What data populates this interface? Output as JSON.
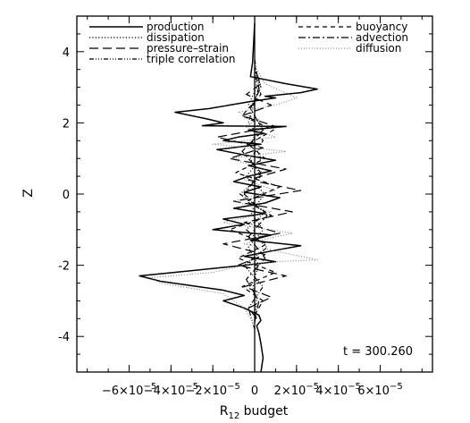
{
  "chart_data": {
    "type": "line",
    "orientation": "vertical-profile",
    "xlabel": "R",
    "xlabel_sub": "12",
    "xlabel_suffix": " budget",
    "ylabel": "Z",
    "xlim": [
      -8.5e-05,
      8.5e-05
    ],
    "ylim": [
      -5,
      5
    ],
    "x_ticks": [
      {
        "value": -6e-05,
        "mant": "−6×10",
        "exp": "−5"
      },
      {
        "value": -4e-05,
        "mant": "−4×10",
        "exp": "−5"
      },
      {
        "value": -2e-05,
        "mant": "−2×10",
        "exp": "−5"
      },
      {
        "value": 0,
        "mant": "0",
        "exp": ""
      },
      {
        "value": 2e-05,
        "mant": "2×10",
        "exp": "−5"
      },
      {
        "value": 4e-05,
        "mant": "4×10",
        "exp": "−5"
      },
      {
        "value": 6e-05,
        "mant": "6×10",
        "exp": "−5"
      }
    ],
    "y_ticks": [
      "-4",
      "-2",
      "0",
      "2",
      "4"
    ],
    "grid": false,
    "legend_placement": "top",
    "annotation": "t = 300.260",
    "series": [
      {
        "name": "production",
        "dash": "",
        "width": 1.5,
        "color": "#000000",
        "x": [
          3e-06,
          4e-06,
          3e-06,
          2e-06,
          1e-06,
          3e-06,
          2e-06,
          -5e-06,
          -1.5e-05,
          -5e-06,
          -1.5e-05,
          -4.5e-05,
          -5.5e-05,
          -3e-05,
          -5e-06,
          1e-05,
          -5e-06,
          8e-06,
          2.2e-05,
          -2e-06,
          8e-06,
          -2e-05,
          -5e-06,
          -1.5e-05,
          5e-06,
          -1e-05,
          5e-06,
          1.2e-05,
          -5e-06,
          3e-06,
          -1e-05,
          -3e-06,
          8e-06,
          -3e-06,
          1e-05,
          -5e-06,
          -1.8e-05,
          3e-06,
          -1.5e-05,
          -8e-06,
          5e-06,
          -3e-06,
          1.5e-05,
          -2.5e-05,
          -1.5e-05,
          -2.2e-05,
          -3.8e-05,
          -2.2e-05,
          -1.2e-05,
          -2e-06,
          1e-05,
          5e-06,
          2.2e-05,
          3e-05,
          1.5e-05,
          -2e-06,
          -1e-06,
          0
        ],
        "y": [
          -5,
          -4.6,
          -4.2,
          -3.9,
          -3.7,
          -3.55,
          -3.4,
          -3.2,
          -3.0,
          -2.85,
          -2.7,
          -2.45,
          -2.3,
          -2.15,
          -2.0,
          -1.9,
          -1.75,
          -1.6,
          -1.45,
          -1.3,
          -1.15,
          -1.0,
          -0.85,
          -0.7,
          -0.55,
          -0.4,
          -0.25,
          -0.1,
          0.05,
          0.2,
          0.35,
          0.5,
          0.65,
          0.8,
          0.95,
          1.1,
          1.25,
          1.4,
          1.5,
          1.6,
          1.7,
          1.8,
          1.9,
          1.92,
          2.0,
          2.1,
          2.3,
          2.4,
          2.5,
          2.6,
          2.7,
          2.75,
          2.85,
          2.95,
          3.1,
          3.3,
          3.7,
          4.8
        ]
      },
      {
        "name": "dissipation",
        "dash": "1.2,2.2",
        "width": 1.2,
        "color": "#000000",
        "x": [
          0,
          1e-06,
          -1e-06,
          2e-06,
          -3e-06,
          4e-06,
          -2e-06,
          5e-06,
          -4e-06,
          3e-06,
          -1e-06,
          2e-06,
          -3e-06,
          1e-06,
          0
        ],
        "y": [
          -3.6,
          -3,
          -2.5,
          -2,
          -1.5,
          -1,
          -0.5,
          0,
          0.5,
          1,
          1.5,
          2,
          2.5,
          3,
          3.6
        ]
      },
      {
        "name": "pressure–strain",
        "dash": "10,5",
        "width": 1.2,
        "color": "#000000",
        "x": [
          1e-06,
          -3e-06,
          8e-06,
          -5e-06,
          1.5e-05,
          -8e-06,
          5e-06,
          -1.5e-05,
          1.2e-05,
          -5e-06,
          1.8e-05,
          -1e-05,
          2.2e-05,
          -3e-06,
          1.5e-05,
          -1.2e-05,
          4e-06,
          -1.8e-05,
          1e-05,
          -6e-06,
          8e-06,
          -4e-06,
          3e-06,
          0
        ],
        "y": [
          -3.5,
          -3.2,
          -2.9,
          -2.6,
          -2.3,
          -2,
          -1.7,
          -1.4,
          -1.1,
          -0.8,
          -0.5,
          -0.2,
          0.1,
          0.4,
          0.7,
          1,
          1.3,
          1.6,
          1.9,
          2.2,
          2.5,
          2.8,
          3.1,
          3.5
        ]
      },
      {
        "name": "triple correlation",
        "dash": "5,2,1,2,1,2,1,2",
        "width": 1.2,
        "color": "#000000",
        "x": [
          0,
          -3e-06,
          4e-06,
          -5e-06,
          6e-06,
          -4e-06,
          5e-06,
          -7e-06,
          3e-06,
          -2e-06,
          4e-06,
          -3e-06,
          2e-06,
          0
        ],
        "y": [
          -3.8,
          -3.2,
          -2.6,
          -2,
          -1.5,
          -1,
          -0.5,
          0,
          0.5,
          1,
          1.5,
          2,
          3,
          3.8
        ]
      },
      {
        "name": "buoyancy",
        "dash": "5,4",
        "width": 1.2,
        "color": "#000000",
        "x": [
          0,
          4e-06,
          -6e-06,
          1e-05,
          -8e-06,
          6e-06,
          -1.2e-05,
          8e-06,
          -4e-06,
          1.2e-05,
          -9e-06,
          5e-06,
          -3e-06,
          9e-06,
          -6e-06,
          3e-06,
          0
        ],
        "y": [
          -3.4,
          -3,
          -2.6,
          -2.2,
          -1.8,
          -1.4,
          -1,
          -0.6,
          -0.2,
          0.2,
          0.6,
          1,
          1.4,
          1.8,
          2.2,
          2.8,
          3.4
        ]
      },
      {
        "name": "advection",
        "dash": "8,3,2,3",
        "width": 1.2,
        "color": "#000000",
        "x": [
          0,
          2e-06,
          -4e-06,
          5e-06,
          -3e-06,
          6e-06,
          -5e-06,
          3e-06,
          -6e-06,
          4e-06,
          -2e-06,
          3e-06,
          0
        ],
        "y": [
          -3.6,
          -3,
          -2.4,
          -1.8,
          -1.2,
          -0.6,
          0,
          0.6,
          1.2,
          1.8,
          2.4,
          3,
          3.6
        ]
      },
      {
        "name": "diffusion",
        "dash": "1,2",
        "width": 1,
        "color": "#777777",
        "x": [
          0,
          -5e-06,
          -1.5e-05,
          -4.5e-05,
          -5e-05,
          -2e-05,
          -5e-06,
          1e-05,
          3e-05,
          1e-05,
          -5e-06,
          1.8e-05,
          -1.5e-05,
          8e-06,
          -1e-05,
          1e-05,
          -5e-06,
          5e-06,
          -1.2e-05,
          1.5e-05,
          -2e-05,
          1e-05,
          -5e-06,
          2e-06,
          -8e-06,
          1e-05,
          2e-05,
          5e-06,
          0
        ],
        "y": [
          -3.7,
          -3.2,
          -2.8,
          -2.5,
          -2.35,
          -2.2,
          -2.0,
          -1.9,
          -1.85,
          -1.6,
          -1.4,
          -1.1,
          -0.8,
          -0.5,
          -0.2,
          0.1,
          0.4,
          0.7,
          1.0,
          1.2,
          1.4,
          1.6,
          1.9,
          2.1,
          2.3,
          2.5,
          2.7,
          3.1,
          3.6
        ]
      }
    ]
  }
}
